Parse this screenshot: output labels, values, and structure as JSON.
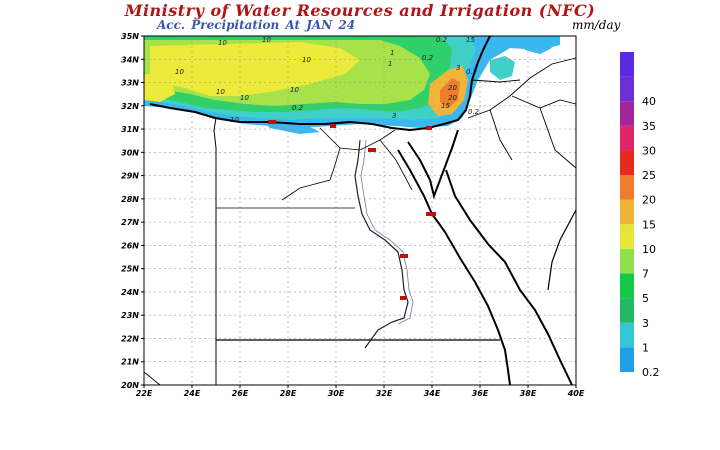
{
  "header": {
    "title": "Ministry of Water Resources and Irrigation (NFC)",
    "subtitle": "Acc. Precipitation  At JAN 24",
    "units": "mm/day"
  },
  "map": {
    "lat_ticks": [
      "35N",
      "34N",
      "33N",
      "32N",
      "31N",
      "30N",
      "29N",
      "28N",
      "27N",
      "26N",
      "25N",
      "24N",
      "23N",
      "22N",
      "21N",
      "20N"
    ],
    "lon_ticks": [
      "22E",
      "24E",
      "26E",
      "28E",
      "30E",
      "32E",
      "34E",
      "36E",
      "38E",
      "40E"
    ],
    "lat_range": [
      20,
      35
    ],
    "lon_range": [
      22,
      40
    ],
    "grid": true
  },
  "legend": {
    "levels": [
      {
        "label": "0.2",
        "color": "#1f9fe8"
      },
      {
        "label": "1",
        "color": "#33c5d8"
      },
      {
        "label": "3",
        "color": "#22b866"
      },
      {
        "label": "5",
        "color": "#14c84a"
      },
      {
        "label": "7",
        "color": "#8fe04a"
      },
      {
        "label": "10",
        "color": "#e6e63a"
      },
      {
        "label": "15",
        "color": "#f0b438"
      },
      {
        "label": "20",
        "color": "#ef7d2c"
      },
      {
        "label": "25",
        "color": "#e62a20"
      },
      {
        "label": "30",
        "color": "#e0246a"
      },
      {
        "label": "35",
        "color": "#a6249a"
      },
      {
        "label": "40",
        "color": "#6b2fd6"
      }
    ],
    "top_color": "#5a2ae0"
  },
  "contour_labels": [
    "10",
    "10",
    "10",
    "10",
    "10",
    "10",
    "10",
    "1",
    "1",
    "0.2",
    "0.2",
    "0.2",
    "15",
    "20",
    "3",
    "3",
    "0.2",
    "10",
    "20",
    "15",
    "0.2"
  ]
}
